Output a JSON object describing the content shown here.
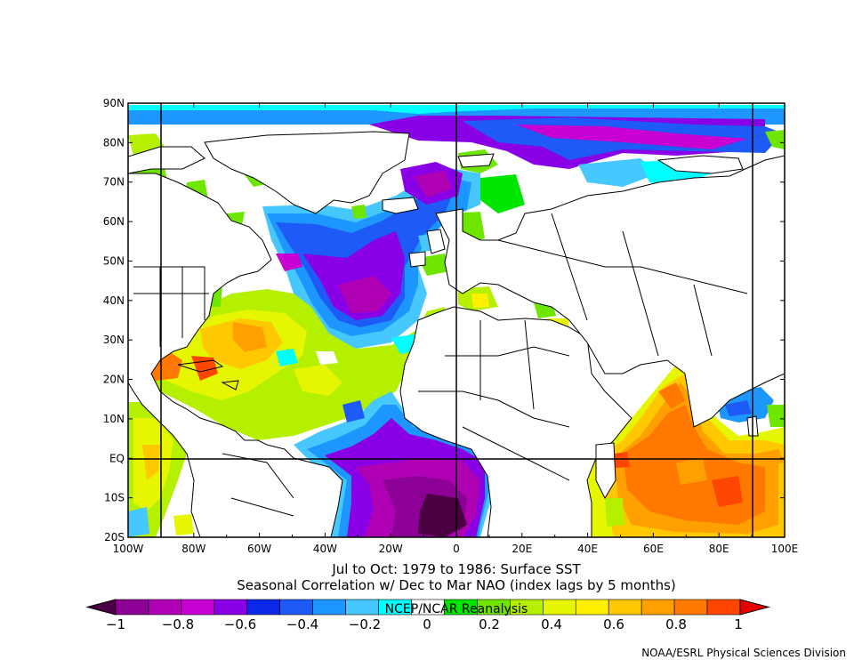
{
  "map": {
    "lat_ticks": [
      "90N",
      "80N",
      "70N",
      "60N",
      "50N",
      "40N",
      "30N",
      "20N",
      "10N",
      "EQ",
      "10S",
      "20S"
    ],
    "lon_ticks": [
      "100W",
      "80W",
      "60W",
      "40W",
      "20W",
      "0",
      "20E",
      "40E",
      "60E",
      "80E",
      "100E"
    ],
    "extent": {
      "lon": [
        -100,
        100
      ],
      "lat": [
        -20,
        90
      ]
    }
  },
  "caption": {
    "line1": "Jul to Oct: 1979 to 1986: Surface SST",
    "line2": "Seasonal Correlation w/ Dec to Mar NAO (index lags by 5 months)"
  },
  "colorbar": {
    "overlay_text": "NCEP/NCAR Reanalysis",
    "tick_labels": [
      "−1",
      "−0.8",
      "−0.6",
      "−0.4",
      "−0.2",
      "0",
      "0.2",
      "0.4",
      "0.6",
      "0.8",
      "1"
    ],
    "colors": [
      "#4b0043",
      "#8c0096",
      "#b000b4",
      "#c800d2",
      "#8a00e6",
      "#0a28e6",
      "#1e5af5",
      "#1e96ff",
      "#46c8ff",
      "#00ffff",
      "#ffffff",
      "#00e600",
      "#6ee600",
      "#b4f000",
      "#e6f500",
      "#fff000",
      "#ffc800",
      "#ffa000",
      "#ff7800",
      "#ff4600",
      "#e60000"
    ]
  },
  "credit": "NOAA/ESRL Physical Sciences Division"
}
